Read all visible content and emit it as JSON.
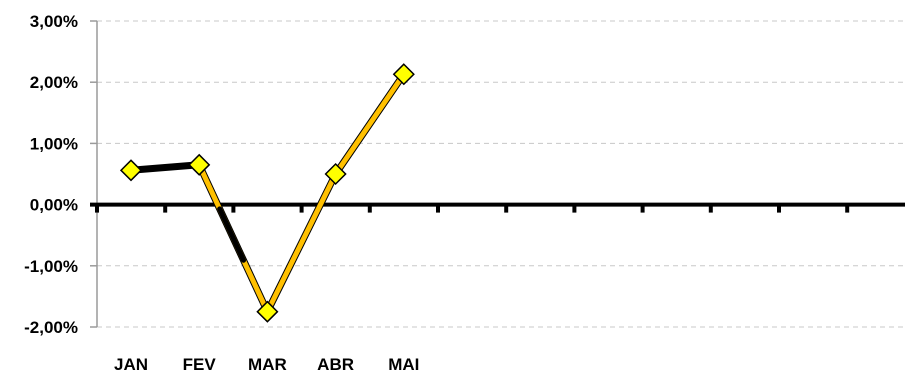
{
  "chart_data": {
    "type": "line",
    "categories": [
      "JAN",
      "FEV",
      "MAR",
      "ABR",
      "MAI"
    ],
    "series": [
      {
        "values": [
          0.56,
          0.65,
          -1.75,
          0.5,
          2.13
        ],
        "color": "#ffc000",
        "marker": "diamond",
        "marker_color": "#ffff00",
        "shadow_color": "#000000"
      }
    ],
    "y_ticks": [
      "3,00%",
      "2,00%",
      "1,00%",
      "0,00%",
      "-1,00%",
      "-2,00%"
    ],
    "ylim": [
      -2,
      3
    ],
    "grid": true,
    "grid_style": "dashed",
    "x_axis_crosses_at": 0,
    "category_slots": 12
  }
}
